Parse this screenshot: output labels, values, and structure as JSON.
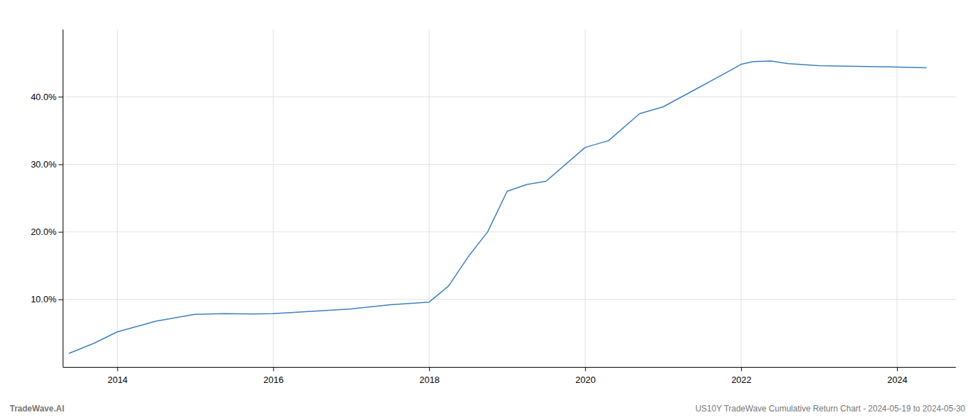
{
  "chart_data": {
    "type": "line",
    "x": [
      2013.38,
      2013.7,
      2014.0,
      2014.5,
      2015.0,
      2015.38,
      2015.7,
      2016.0,
      2016.3,
      2016.6,
      2017.0,
      2017.5,
      2018.0,
      2018.25,
      2018.5,
      2018.75,
      2019.0,
      2019.25,
      2019.5,
      2020.0,
      2020.3,
      2020.7,
      2021.0,
      2021.4,
      2021.8,
      2022.0,
      2022.15,
      2022.38,
      2022.6,
      2023.0,
      2023.5,
      2024.0,
      2024.38
    ],
    "values": [
      2.0,
      3.5,
      5.2,
      6.8,
      7.8,
      7.9,
      7.85,
      7.9,
      8.1,
      8.3,
      8.6,
      9.2,
      9.6,
      12.0,
      16.3,
      20.0,
      26.0,
      27.0,
      27.5,
      32.5,
      33.5,
      37.5,
      38.5,
      41.0,
      43.5,
      44.8,
      45.2,
      45.3,
      44.9,
      44.6,
      44.5,
      44.4,
      44.3
    ],
    "color": "#3a7ebf",
    "xlim": [
      2013.3,
      2024.75
    ],
    "ylim": [
      0.0,
      50.0
    ],
    "xticks": [
      2014,
      2016,
      2018,
      2020,
      2022,
      2024
    ],
    "yticks": [
      {
        "value": 10.0,
        "label": "10.0%"
      },
      {
        "value": 20.0,
        "label": "20.0%"
      },
      {
        "value": 30.0,
        "label": "30.0%"
      },
      {
        "value": 40.0,
        "label": "40.0%"
      }
    ],
    "grid": true,
    "annotations": [
      "TradeWave.AI",
      "US10Y TradeWave Cumulative Return Chart - 2024-05-19 to 2024-05-30"
    ]
  }
}
